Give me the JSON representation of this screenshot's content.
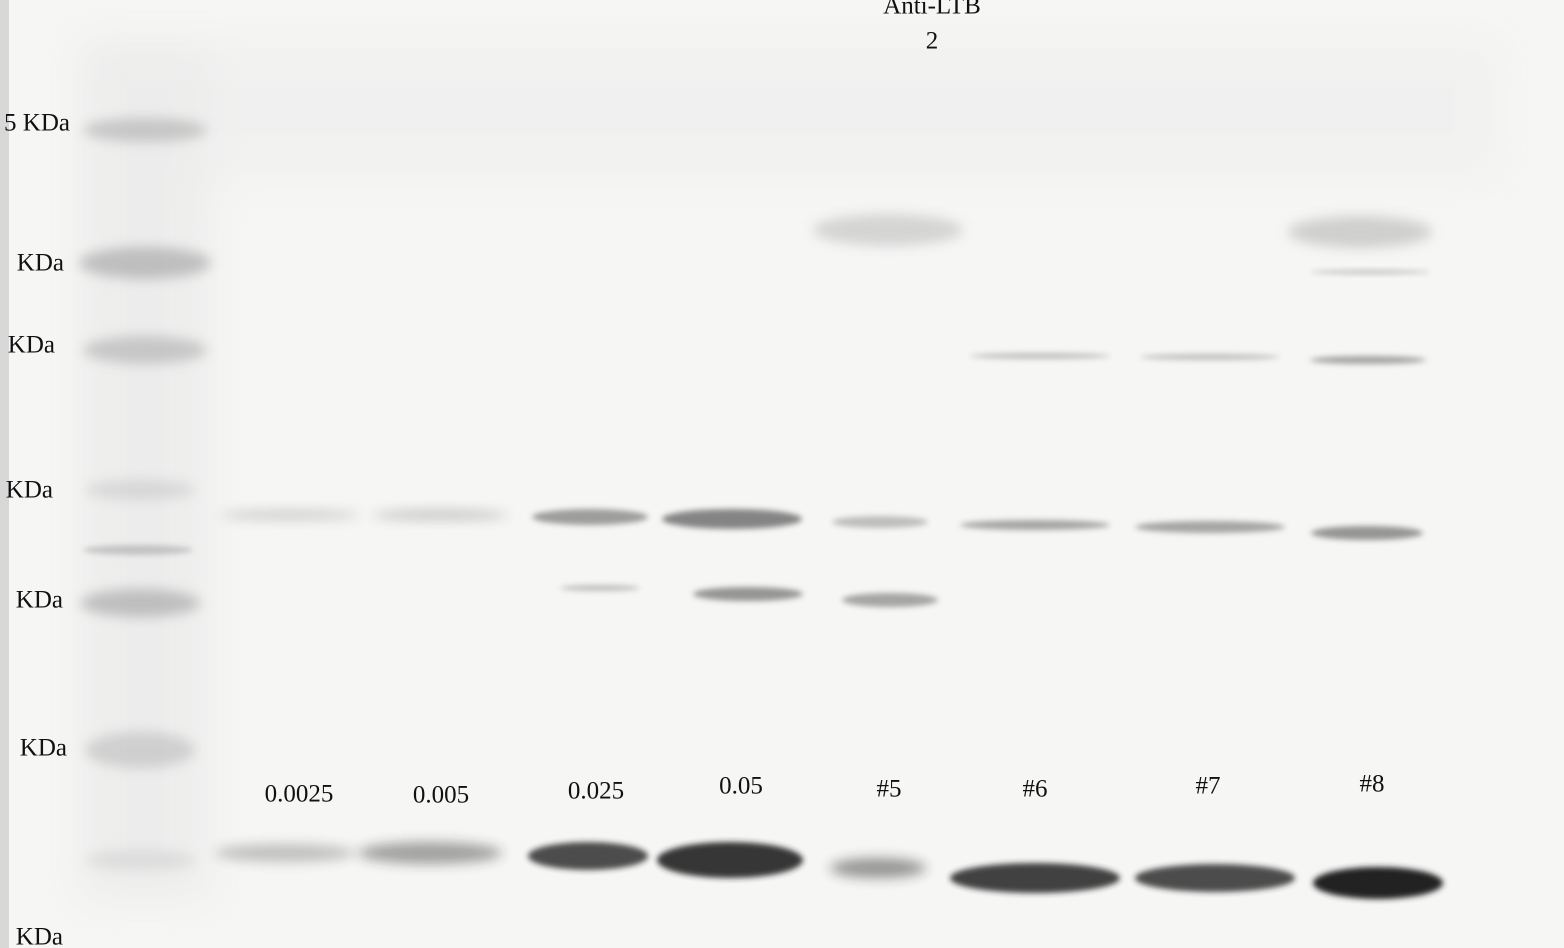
{
  "header": {
    "title": "Anti-LTB",
    "subtitle": "2"
  },
  "markers": [
    "5 KDa",
    "KDa",
    "KDa",
    "KDa",
    "KDa",
    "KDa",
    "KDa"
  ],
  "lanes": [
    "0.0025",
    "0.005",
    "0.025",
    "0.05",
    "#5",
    "#6",
    "#7",
    "#8"
  ]
}
